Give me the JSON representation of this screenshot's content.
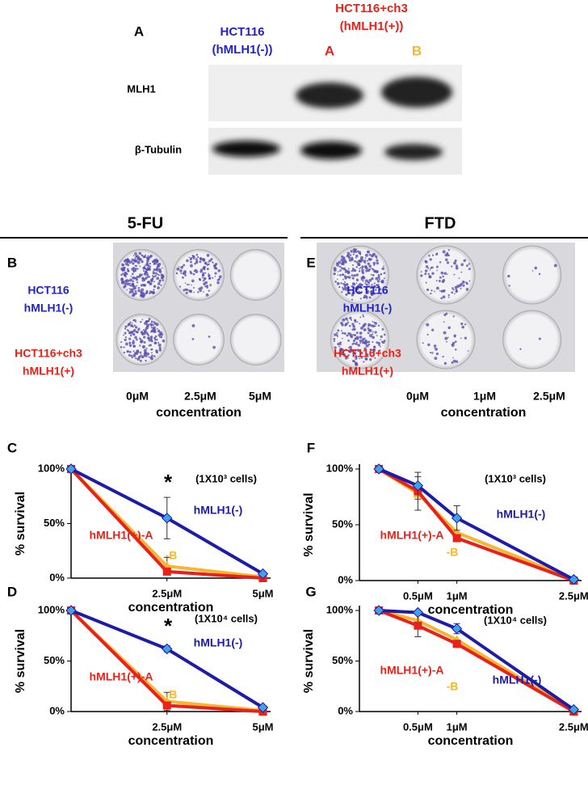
{
  "panel_a": {
    "label": "A",
    "columns": [
      {
        "lines": [
          "HCT116",
          "(hMLH1(-))"
        ]
      },
      {
        "lines": [
          "HCT116+ch3",
          "(hMLH1(+))"
        ],
        "clones": [
          "A",
          "B"
        ]
      }
    ],
    "rows": [
      "MLH1",
      "β-Tubulin"
    ]
  },
  "sections": [
    "5-FU",
    "FTD"
  ],
  "plates": [
    {
      "label": "B",
      "rows": [
        [
          "HCT116",
          "hMLH1(-)"
        ],
        [
          "HCT116+ch3",
          "hMLH1(+)"
        ]
      ],
      "columns": [
        "0μM",
        "2.5μM",
        "5μM"
      ],
      "xlabel": "concentration"
    },
    {
      "label": "E",
      "rows": [
        [
          "HCT116",
          "hMLH1(-)"
        ],
        [
          "HCT116+ch3",
          "hMLH1(+)"
        ]
      ],
      "columns": [
        "0μM",
        "1μM",
        "2.5μM"
      ],
      "xlabel": "concentration"
    }
  ],
  "chart_data": [
    {
      "type": "line",
      "label": "C",
      "x": [
        0,
        2.5,
        5
      ],
      "xlim": [
        0,
        5.2
      ],
      "xticks": [
        {
          "value": 2.5,
          "label": "2.5μM"
        },
        {
          "value": 5,
          "label": "5μM"
        }
      ],
      "ylim": [
        0,
        100
      ],
      "yticks": [
        {
          "value": 0,
          "label": "0%"
        },
        {
          "value": 50,
          "label": "50%"
        },
        {
          "value": 100,
          "label": "100%"
        }
      ],
      "xlabel": "concentration",
      "ylabel": "% survival",
      "annotations": [
        "*",
        "(1X10³ cells)"
      ],
      "series": [
        {
          "name": "hMLH1(-)",
          "color": "#1c1ca8",
          "marker": "diamond",
          "values": [
            100,
            55,
            4
          ],
          "errors": [
            null,
            19,
            null
          ]
        },
        {
          "name": "hMLH1(+)-A",
          "color": "#e8221a",
          "marker": "square",
          "values": [
            100,
            6,
            0
          ],
          "errors": [
            null,
            null,
            null
          ]
        },
        {
          "name": "-B",
          "color": "#f5b731",
          "marker": "triangle",
          "values": [
            100,
            11,
            1
          ],
          "errors": [
            null,
            8,
            null
          ]
        }
      ]
    },
    {
      "type": "line",
      "label": "D",
      "x": [
        0,
        2.5,
        5
      ],
      "xlim": [
        0,
        5.2
      ],
      "xticks": [
        {
          "value": 2.5,
          "label": "2.5μM"
        },
        {
          "value": 5,
          "label": "5μM"
        }
      ],
      "ylim": [
        0,
        100
      ],
      "yticks": [
        {
          "value": 0,
          "label": "0%"
        },
        {
          "value": 50,
          "label": "50%"
        },
        {
          "value": 100,
          "label": "100%"
        }
      ],
      "xlabel": "concentration",
      "ylabel": "% survival",
      "annotations": [
        "*",
        "(1X10⁴ cells)"
      ],
      "series": [
        {
          "name": "hMLH1(-)",
          "color": "#1c1ca8",
          "marker": "diamond",
          "values": [
            100,
            62,
            4
          ],
          "errors": [
            null,
            3,
            null
          ]
        },
        {
          "name": "hMLH1(+)-A",
          "color": "#e8221a",
          "marker": "square",
          "values": [
            100,
            6,
            0
          ],
          "errors": [
            null,
            null,
            null
          ]
        },
        {
          "name": "-B",
          "color": "#f5b731",
          "marker": "triangle",
          "values": [
            100,
            10,
            1
          ],
          "errors": [
            null,
            9,
            null
          ]
        }
      ]
    },
    {
      "type": "line",
      "label": "F",
      "x": [
        0,
        0.5,
        1,
        2.5
      ],
      "xlim": [
        -0.25,
        2.6
      ],
      "xticks": [
        {
          "value": 0.5,
          "label": "0.5μM"
        },
        {
          "value": 1,
          "label": "1μM"
        },
        {
          "value": 2.5,
          "label": "2.5μM"
        }
      ],
      "ylim": [
        0,
        100
      ],
      "yticks": [
        {
          "value": 0,
          "label": "0%"
        },
        {
          "value": 50,
          "label": "50%"
        },
        {
          "value": 100,
          "label": "100%"
        }
      ],
      "xlabel": "concentration",
      "ylabel": "% survival",
      "annotations": [
        "(1X10³ cells)"
      ],
      "series": [
        {
          "name": "hMLH1(-)",
          "color": "#1c1ca8",
          "marker": "diamond",
          "values": [
            100,
            85,
            56,
            1
          ],
          "errors": [
            null,
            12,
            11,
            null
          ]
        },
        {
          "name": "hMLH1(+)-A",
          "color": "#e8221a",
          "marker": "square",
          "values": [
            100,
            80,
            38,
            0
          ],
          "errors": [
            null,
            null,
            null,
            null
          ]
        },
        {
          "name": "-B",
          "color": "#f5b731",
          "marker": "triangle",
          "values": [
            100,
            78,
            43,
            1
          ],
          "errors": [
            null,
            15,
            null,
            null
          ]
        }
      ]
    },
    {
      "type": "line",
      "label": "G",
      "x": [
        0,
        0.5,
        1,
        2.5
      ],
      "xlim": [
        -0.25,
        2.6
      ],
      "xticks": [
        {
          "value": 0.5,
          "label": "0.5μM"
        },
        {
          "value": 1,
          "label": "1μM"
        },
        {
          "value": 2.5,
          "label": "2.5μM"
        }
      ],
      "ylim": [
        0,
        100
      ],
      "yticks": [
        {
          "value": 0,
          "label": "0%"
        },
        {
          "value": 50,
          "label": "50%"
        },
        {
          "value": 100,
          "label": "100%"
        }
      ],
      "xlabel": "concentration",
      "ylabel": "% survival",
      "annotations": [
        "(1X10⁴ cells)"
      ],
      "series": [
        {
          "name": "hMLH1(-)",
          "color": "#1c1ca8",
          "marker": "diamond",
          "values": [
            100,
            98,
            82,
            2
          ],
          "errors": [
            null,
            null,
            5,
            null
          ]
        },
        {
          "name": "hMLH1(+)-A",
          "color": "#e8221a",
          "marker": "square",
          "values": [
            100,
            85,
            67,
            0
          ],
          "errors": [
            null,
            11,
            null,
            null
          ]
        },
        {
          "name": "-B",
          "color": "#f5b731",
          "marker": "triangle",
          "values": [
            100,
            90,
            71,
            1
          ],
          "errors": [
            null,
            null,
            null,
            null
          ]
        }
      ]
    }
  ]
}
